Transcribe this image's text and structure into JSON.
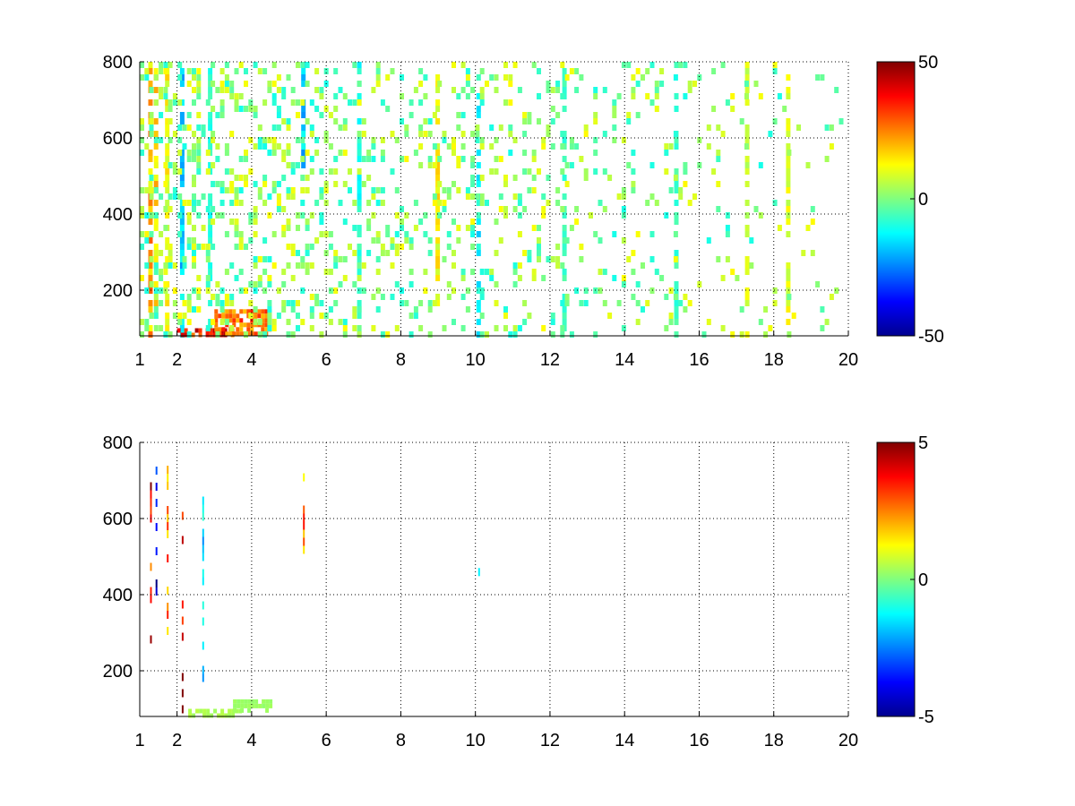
{
  "chart_data": [
    {
      "type": "heatmap",
      "title": "",
      "xlabel": "",
      "ylabel": "",
      "xlim": [
        1,
        20
      ],
      "ylim": [
        80,
        800
      ],
      "x_ticks": [
        1,
        2,
        4,
        6,
        8,
        10,
        12,
        14,
        16,
        18,
        20
      ],
      "y_ticks": [
        200,
        400,
        600,
        800
      ],
      "grid": true,
      "colormap": "jet",
      "colorbar": {
        "range": [
          -50,
          50
        ],
        "ticks": [
          -50,
          0,
          50
        ]
      },
      "features": [
        {
          "kind": "column",
          "x": 1.3,
          "y": [
            80,
            800
          ],
          "value": 25
        },
        {
          "kind": "column",
          "x": 1.45,
          "y": [
            80,
            800
          ],
          "value": 20
        },
        {
          "kind": "column",
          "x": 1.75,
          "y": [
            80,
            800
          ],
          "value": 15
        },
        {
          "kind": "column",
          "x": 2.15,
          "y": [
            80,
            800
          ],
          "value": -20
        },
        {
          "kind": "column",
          "x": 2.9,
          "y": [
            80,
            800
          ],
          "value": -10
        },
        {
          "kind": "column",
          "x": 5.4,
          "y": [
            520,
            800
          ],
          "value": -20
        },
        {
          "kind": "column",
          "x": 6.9,
          "y": [
            80,
            800
          ],
          "value": -12
        },
        {
          "kind": "column",
          "x": 9.0,
          "y": [
            80,
            800
          ],
          "value": 15
        },
        {
          "kind": "column",
          "x": 10.1,
          "y": [
            80,
            800
          ],
          "value": -15
        },
        {
          "kind": "column",
          "x": 12.4,
          "y": [
            80,
            800
          ],
          "value": -8
        },
        {
          "kind": "column",
          "x": 15.4,
          "y": [
            80,
            800
          ],
          "value": -8
        },
        {
          "kind": "column",
          "x": 17.3,
          "y": [
            80,
            800
          ],
          "value": 10
        },
        {
          "kind": "column",
          "x": 18.4,
          "y": [
            80,
            800
          ],
          "value": 12
        },
        {
          "kind": "blob",
          "x": [
            2.0,
            3.5
          ],
          "y": [
            80,
            100
          ],
          "value": 40
        },
        {
          "kind": "blob",
          "x": [
            3.0,
            4.5
          ],
          "y": [
            90,
            150
          ],
          "value": 30
        }
      ]
    },
    {
      "type": "heatmap",
      "title": "",
      "xlabel": "",
      "ylabel": "",
      "xlim": [
        1,
        20
      ],
      "ylim": [
        80,
        800
      ],
      "x_ticks": [
        1,
        2,
        4,
        6,
        8,
        10,
        12,
        14,
        16,
        18,
        20
      ],
      "y_ticks": [
        200,
        400,
        600,
        800
      ],
      "grid": true,
      "colormap": "jet",
      "colorbar": {
        "range": [
          -5,
          5
        ],
        "ticks": [
          -5,
          0,
          5
        ]
      },
      "features": [
        {
          "kind": "column",
          "x": 1.45,
          "y": [
            280,
            800
          ],
          "value": -5
        },
        {
          "kind": "column",
          "x": 1.3,
          "y": [
            240,
            780
          ],
          "value": 5
        },
        {
          "kind": "column",
          "x": 1.75,
          "y": [
            300,
            760
          ],
          "value": 3
        },
        {
          "kind": "column",
          "x": 2.15,
          "y": [
            100,
            660
          ],
          "value": 5
        },
        {
          "kind": "column",
          "x": 2.7,
          "y": [
            140,
            700
          ],
          "value": -2
        },
        {
          "kind": "column",
          "x": 5.4,
          "y": [
            520,
            740
          ],
          "value": 3
        },
        {
          "kind": "column",
          "x": 10.1,
          "y": [
            450,
            470
          ],
          "value": -2
        },
        {
          "kind": "blob",
          "x": [
            2.3,
            3.7
          ],
          "y": [
            80,
            100
          ],
          "value": 0.5
        },
        {
          "kind": "blob",
          "x": [
            3.5,
            4.5
          ],
          "y": [
            90,
            125
          ],
          "value": 0.3
        }
      ]
    }
  ]
}
